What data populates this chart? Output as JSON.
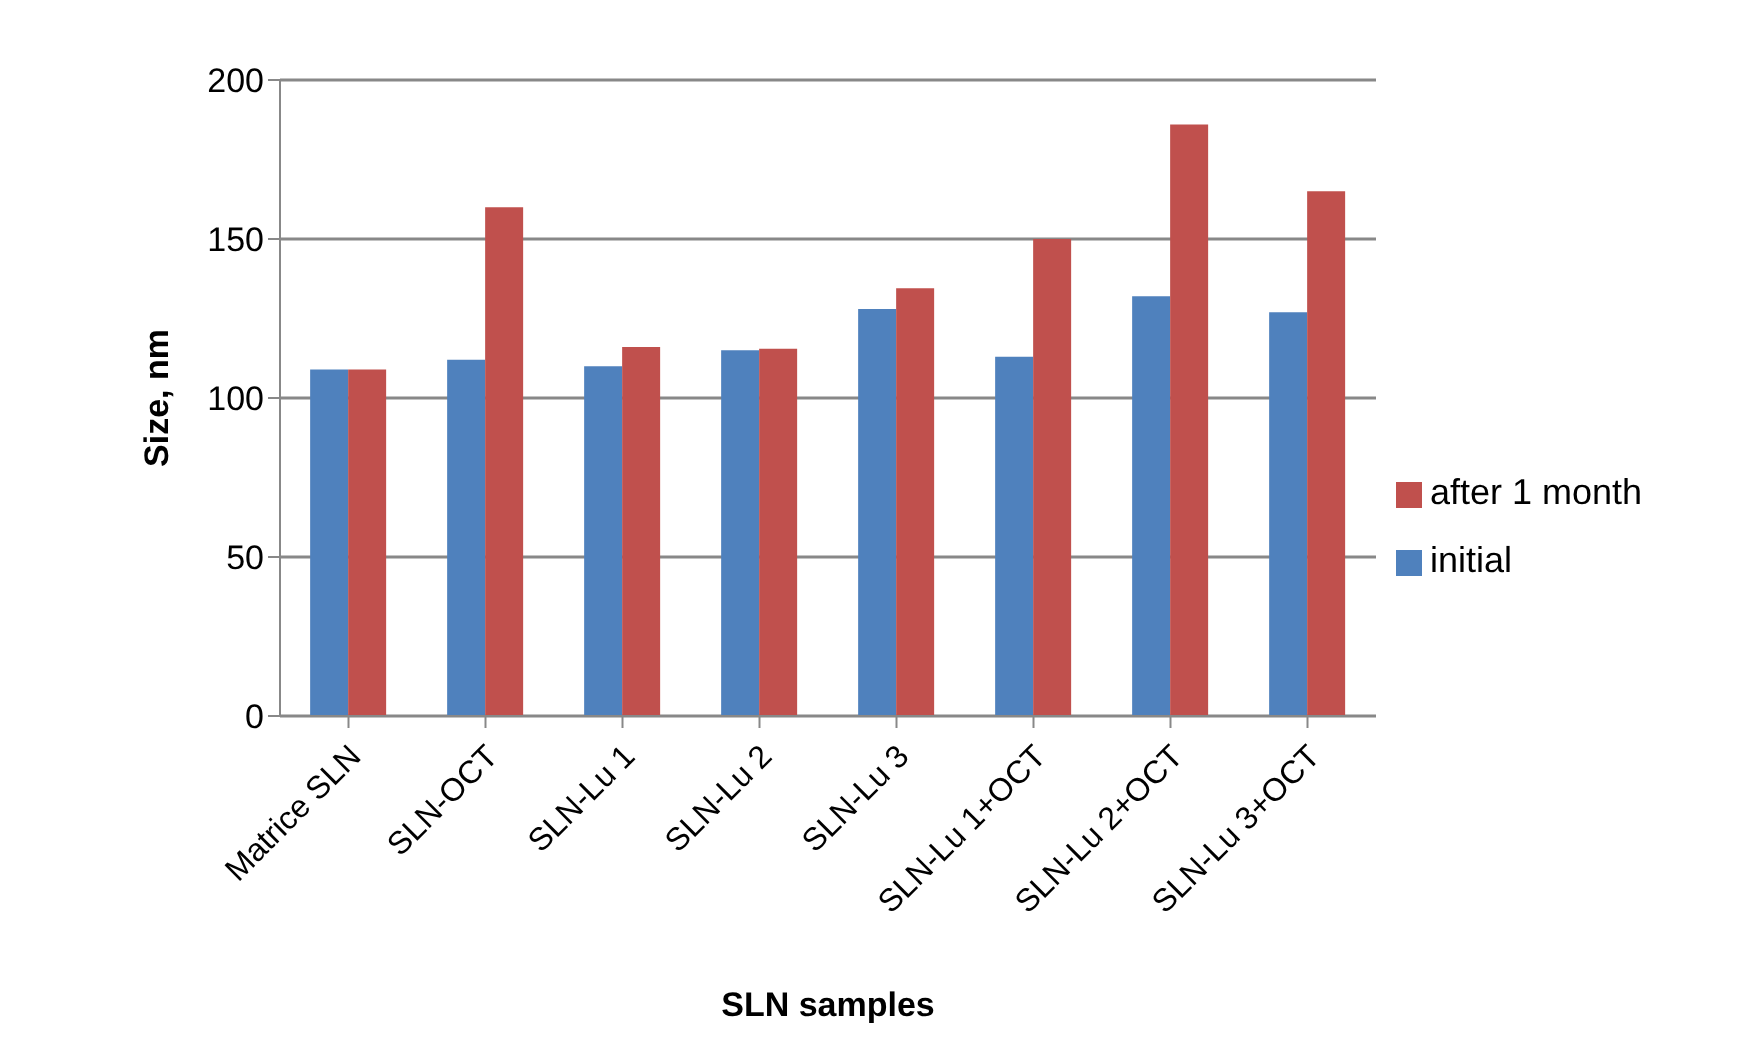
{
  "chart_data": {
    "type": "bar",
    "xlabel": "SLN samples",
    "ylabel": "Size, nm",
    "categories": [
      "Matrice SLN",
      "SLN-OCT",
      "SLN-Lu 1",
      "SLN-Lu 2",
      "SLN-Lu 3",
      "SLN-Lu 1+OCT",
      "SLN-Lu 2+OCT",
      "SLN-Lu 3+OCT"
    ],
    "series": [
      {
        "name": "initial",
        "color": "#4f81bd",
        "values": [
          109,
          112,
          110,
          115,
          128,
          113,
          132,
          127
        ]
      },
      {
        "name": "after 1 month",
        "color": "#c0504d",
        "values": [
          109,
          160,
          116,
          115.5,
          134.5,
          150,
          186,
          165
        ]
      }
    ],
    "ylim": [
      0,
      200
    ],
    "yticks": [
      0,
      50,
      100,
      150,
      200
    ],
    "grid": "y",
    "legend": "right"
  }
}
